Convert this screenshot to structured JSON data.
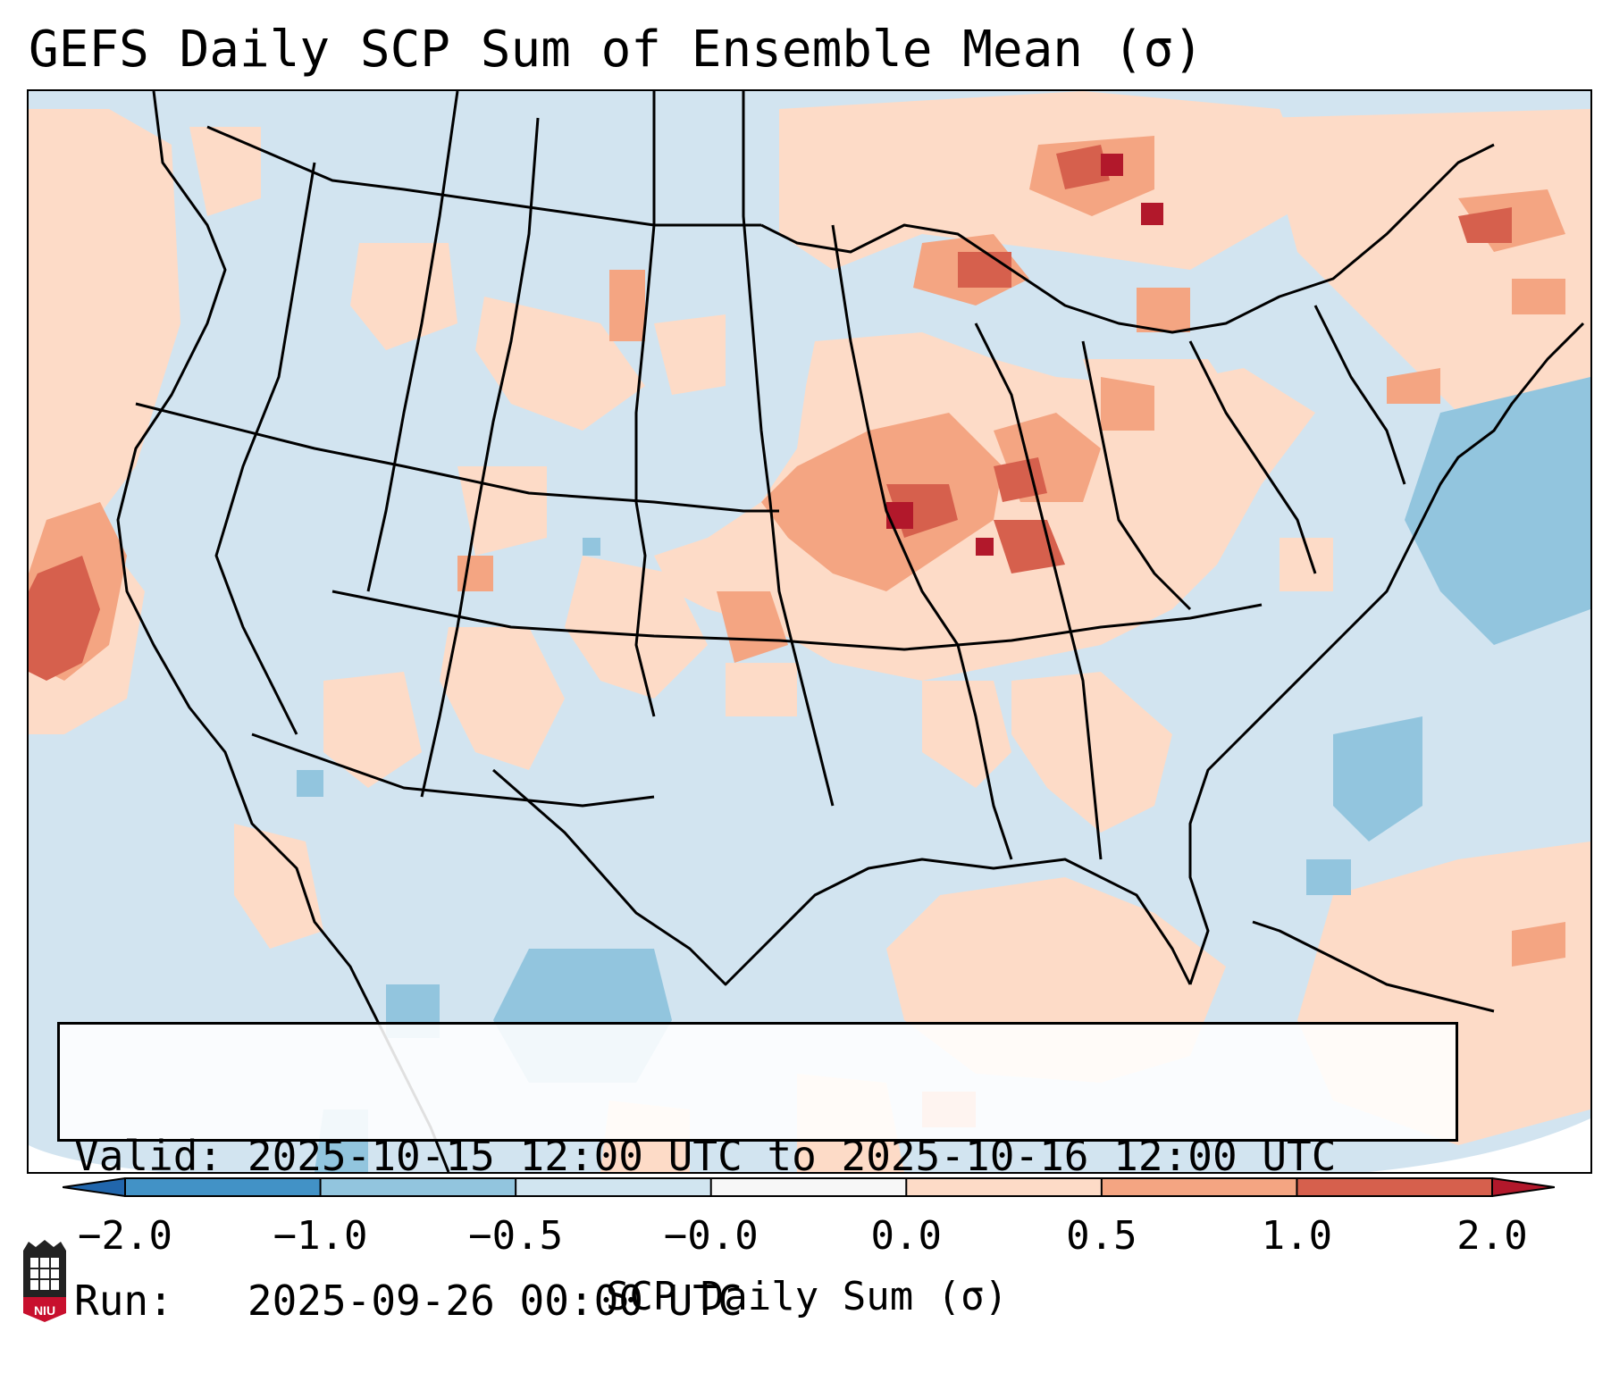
{
  "title": "GEFS Daily SCP Sum of Ensemble Mean (σ)",
  "info": {
    "valid_label": "Valid:",
    "valid_value": "2025-10-15 12:00 UTC to 2025-10-16 12:00 UTC",
    "run_label": "Run:",
    "run_value": "2025-09-26 00:00 UTC"
  },
  "colorbar": {
    "label": "SCP Daily Sum (σ)",
    "ticks": [
      "−2.0",
      "−1.0",
      "−0.5",
      "−0.0",
      "0.0",
      "0.5",
      "1.0",
      "2.0"
    ],
    "bins": [
      {
        "from": -2.0,
        "to": -1.0,
        "color": "#4292c6"
      },
      {
        "from": -1.0,
        "to": -0.5,
        "color": "#92c5de"
      },
      {
        "from": -0.5,
        "to": -0.0,
        "color": "#d1e5f0"
      },
      {
        "from": -0.0,
        "to": 0.0,
        "color": "#f7f7f7"
      },
      {
        "from": 0.0,
        "to": 0.5,
        "color": "#fddbc7"
      },
      {
        "from": 0.5,
        "to": 1.0,
        "color": "#f4a582"
      },
      {
        "from": 1.0,
        "to": 2.0,
        "color": "#d6604d"
      }
    ],
    "under_color": "#2166ac",
    "over_color": "#b2182b"
  },
  "logo": {
    "text": "NIU",
    "color": "#c8102e"
  },
  "map": {
    "background_color": "#d2e4f0",
    "outside_color": "#ffffff",
    "border_color": "#000000"
  }
}
